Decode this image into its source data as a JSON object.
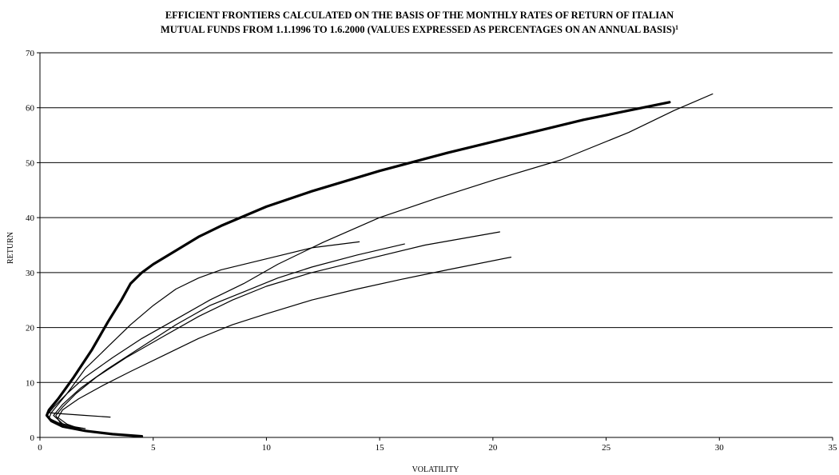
{
  "chart_data": {
    "type": "line",
    "title_line1": "EFFICIENT FRONTIERS CALCULATED ON THE BASIS OF THE MONTHLY RATES OF RETURN OF ITALIAN",
    "title_line2": "MUTUAL FUNDS FROM 1.1.1996 TO 1.6.2000 (VALUES EXPRESSED AS PERCENTAGES ON AN ANNUAL BASIS)",
    "title_footnote": "1",
    "xlabel": "VOLATILITY",
    "ylabel": "RETURN",
    "xlim": [
      0,
      35
    ],
    "ylim": [
      0,
      70
    ],
    "xticks": [
      0,
      5,
      10,
      15,
      20,
      25,
      30,
      35
    ],
    "yticks": [
      0,
      10,
      20,
      30,
      40,
      50,
      60,
      70
    ],
    "grid": "horizontal",
    "colors": {
      "line": "#000000",
      "grid": "#000000",
      "background": "#ffffff"
    },
    "series": [
      {
        "bold": true,
        "points": [
          [
            4.5,
            0.2
          ],
          [
            3.2,
            0.6
          ],
          [
            2.0,
            1.2
          ],
          [
            1.0,
            2.0
          ],
          [
            0.5,
            3.0
          ],
          [
            0.3,
            4.0
          ],
          [
            0.4,
            5.0
          ],
          [
            0.8,
            7.0
          ],
          [
            1.5,
            11.0
          ],
          [
            2.3,
            16.0
          ],
          [
            3.0,
            21.0
          ],
          [
            3.6,
            25.0
          ],
          [
            4.0,
            28.0
          ],
          [
            4.5,
            30.0
          ],
          [
            5.0,
            31.5
          ],
          [
            6.0,
            34.0
          ],
          [
            7.0,
            36.5
          ],
          [
            8.0,
            38.5
          ],
          [
            10.0,
            42.0
          ],
          [
            12.0,
            44.8
          ],
          [
            15.0,
            48.5
          ],
          [
            18.0,
            51.8
          ],
          [
            21.0,
            54.8
          ],
          [
            24.0,
            57.8
          ],
          [
            26.0,
            59.5
          ],
          [
            27.8,
            61.0
          ]
        ]
      },
      {
        "bold": false,
        "points": [
          [
            3.1,
            3.7
          ],
          [
            2.0,
            4.0
          ],
          [
            1.0,
            4.3
          ],
          [
            0.4,
            4.5
          ],
          [
            0.6,
            5.5
          ],
          [
            1.2,
            8.0
          ],
          [
            2.0,
            11.0
          ],
          [
            3.2,
            14.5
          ],
          [
            4.5,
            18.0
          ],
          [
            6.0,
            21.5
          ],
          [
            7.5,
            25.0
          ],
          [
            9.0,
            28.0
          ],
          [
            10.5,
            31.5
          ],
          [
            12.5,
            35.5
          ],
          [
            15.0,
            40.0
          ],
          [
            17.5,
            43.5
          ],
          [
            20.0,
            46.8
          ],
          [
            23.0,
            50.5
          ],
          [
            26.0,
            55.5
          ],
          [
            28.0,
            59.5
          ],
          [
            29.7,
            62.5
          ]
        ]
      },
      {
        "bold": false,
        "points": [
          [
            2.0,
            1.6
          ],
          [
            1.0,
            2.3
          ],
          [
            0.4,
            3.5
          ],
          [
            0.5,
            4.5
          ],
          [
            1.2,
            8.0
          ],
          [
            2.0,
            12.5
          ],
          [
            3.0,
            16.5
          ],
          [
            4.0,
            20.5
          ],
          [
            5.0,
            24.0
          ],
          [
            6.0,
            27.0
          ],
          [
            7.0,
            29.0
          ],
          [
            8.0,
            30.5
          ],
          [
            10.0,
            32.5
          ],
          [
            12.0,
            34.5
          ],
          [
            14.1,
            35.6
          ]
        ]
      },
      {
        "bold": false,
        "points": [
          [
            1.8,
            1.5
          ],
          [
            1.0,
            2.5
          ],
          [
            0.6,
            4.0
          ],
          [
            1.0,
            6.0
          ],
          [
            1.8,
            9.0
          ],
          [
            3.0,
            12.5
          ],
          [
            4.5,
            16.5
          ],
          [
            6.0,
            20.5
          ],
          [
            7.5,
            24.0
          ],
          [
            9.0,
            26.5
          ],
          [
            10.5,
            29.0
          ],
          [
            12.0,
            31.0
          ],
          [
            14.0,
            33.2
          ],
          [
            16.1,
            35.2
          ]
        ]
      },
      {
        "bold": false,
        "points": [
          [
            1.5,
            1.8
          ],
          [
            0.9,
            2.6
          ],
          [
            0.7,
            4.0
          ],
          [
            1.0,
            5.5
          ],
          [
            1.6,
            8.0
          ],
          [
            2.5,
            11.0
          ],
          [
            3.8,
            14.5
          ],
          [
            5.5,
            18.5
          ],
          [
            7.0,
            22.0
          ],
          [
            8.5,
            25.0
          ],
          [
            10.0,
            27.5
          ],
          [
            12.0,
            30.0
          ],
          [
            14.0,
            32.0
          ],
          [
            17.0,
            35.0
          ],
          [
            20.3,
            37.4
          ]
        ]
      },
      {
        "bold": false,
        "points": [
          [
            1.9,
            1.4
          ],
          [
            1.2,
            2.4
          ],
          [
            0.8,
            3.6
          ],
          [
            1.0,
            5.0
          ],
          [
            1.7,
            7.0
          ],
          [
            2.8,
            9.5
          ],
          [
            4.0,
            12.0
          ],
          [
            5.5,
            15.0
          ],
          [
            7.0,
            18.0
          ],
          [
            8.5,
            20.5
          ],
          [
            10.0,
            22.5
          ],
          [
            12.0,
            25.0
          ],
          [
            14.0,
            27.0
          ],
          [
            16.0,
            28.8
          ],
          [
            18.0,
            30.5
          ],
          [
            20.8,
            32.8
          ]
        ]
      }
    ]
  }
}
